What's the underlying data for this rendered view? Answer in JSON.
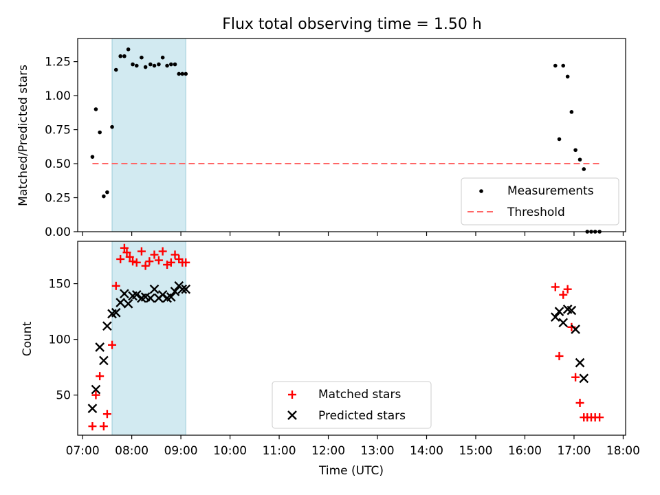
{
  "figure": {
    "title": "Flux total observing time = 1.50 h"
  },
  "chart_data": [
    {
      "type": "scatter",
      "ylabel": "Matched/Predicted stars",
      "xlim": [
        6.9,
        18.05
      ],
      "ylim": [
        0.0,
        1.42
      ],
      "yticks": [
        0.0,
        0.25,
        0.5,
        0.75,
        1.0,
        1.25
      ],
      "ytick_labels": [
        "0.00",
        "0.25",
        "0.50",
        "0.75",
        "1.00",
        "1.25"
      ],
      "shaded_span": [
        7.6,
        9.1
      ],
      "shaded_color": "#add8e6",
      "threshold": {
        "label": "Threshold",
        "y": 0.5,
        "x": [
          7.2,
          17.55
        ],
        "color": "#ff6666"
      },
      "legend_position": "lower-right",
      "series": [
        {
          "name": "Measurements",
          "color": "#000000",
          "x": [
            7.2,
            7.27,
            7.35,
            7.43,
            7.5,
            7.6,
            7.68,
            7.77,
            7.85,
            7.93,
            8.02,
            8.1,
            8.2,
            8.28,
            8.38,
            8.46,
            8.55,
            8.63,
            8.72,
            8.8,
            8.88,
            8.96,
            9.03,
            9.1,
            16.62,
            16.7,
            16.78,
            16.87,
            16.95,
            17.03,
            17.12,
            17.2,
            17.27,
            17.35,
            17.43,
            17.52
          ],
          "y": [
            0.55,
            0.9,
            0.73,
            0.26,
            0.29,
            0.77,
            1.19,
            1.29,
            1.29,
            1.34,
            1.23,
            1.22,
            1.28,
            1.21,
            1.23,
            1.22,
            1.23,
            1.28,
            1.22,
            1.23,
            1.23,
            1.16,
            1.16,
            1.16,
            1.22,
            0.68,
            1.22,
            1.14,
            0.88,
            0.6,
            0.53,
            0.46,
            0.0,
            0.0,
            0.0,
            0.0
          ]
        }
      ]
    },
    {
      "type": "scatter",
      "xlabel": "Time (UTC)",
      "ylabel": "Count",
      "xlim": [
        6.9,
        18.05
      ],
      "ylim": [
        14,
        188
      ],
      "yticks": [
        50,
        100,
        150
      ],
      "ytick_labels": [
        "50",
        "100",
        "150"
      ],
      "xticks": [
        7,
        8,
        9,
        10,
        11,
        12,
        13,
        14,
        15,
        16,
        17,
        18
      ],
      "xtick_labels": [
        "07:00",
        "08:00",
        "09:00",
        "10:00",
        "11:00",
        "12:00",
        "13:00",
        "14:00",
        "15:00",
        "16:00",
        "17:00",
        "18:00"
      ],
      "shaded_span": [
        7.6,
        9.1
      ],
      "shaded_color": "#add8e6",
      "legend_position": "lower-center",
      "series": [
        {
          "name": "Matched stars",
          "marker": "plus",
          "color": "#ff0000",
          "x": [
            7.2,
            7.27,
            7.35,
            7.43,
            7.5,
            7.6,
            7.68,
            7.77,
            7.85,
            7.9,
            7.96,
            8.02,
            8.1,
            8.2,
            8.28,
            8.36,
            8.46,
            8.55,
            8.63,
            8.72,
            8.8,
            8.88,
            8.96,
            9.03,
            9.1,
            16.62,
            16.7,
            16.78,
            16.87,
            16.95,
            17.03,
            17.12,
            17.2,
            17.27,
            17.35,
            17.43,
            17.52
          ],
          "y": [
            22,
            50,
            67,
            22,
            33,
            95,
            148,
            172,
            182,
            178,
            174,
            170,
            169,
            179,
            166,
            170,
            176,
            171,
            179,
            167,
            169,
            176,
            172,
            169,
            169,
            147,
            85,
            140,
            145,
            111,
            66,
            43,
            30,
            30,
            30,
            30,
            30
          ]
        },
        {
          "name": "Predicted stars",
          "marker": "x",
          "color": "#000000",
          "x": [
            7.2,
            7.27,
            7.35,
            7.43,
            7.5,
            7.6,
            7.68,
            7.77,
            7.85,
            7.93,
            8.02,
            8.1,
            8.2,
            8.28,
            8.38,
            8.46,
            8.55,
            8.63,
            8.72,
            8.8,
            8.88,
            8.96,
            9.03,
            9.1,
            16.62,
            16.7,
            16.78,
            16.87,
            16.95,
            17.03,
            17.12,
            17.2
          ],
          "y": [
            38,
            55,
            93,
            81,
            112,
            123,
            124,
            133,
            141,
            132,
            139,
            140,
            137,
            138,
            137,
            145,
            137,
            140,
            137,
            138,
            143,
            148,
            145,
            145,
            120,
            125,
            115,
            127,
            126,
            109,
            79,
            65
          ]
        }
      ]
    }
  ]
}
